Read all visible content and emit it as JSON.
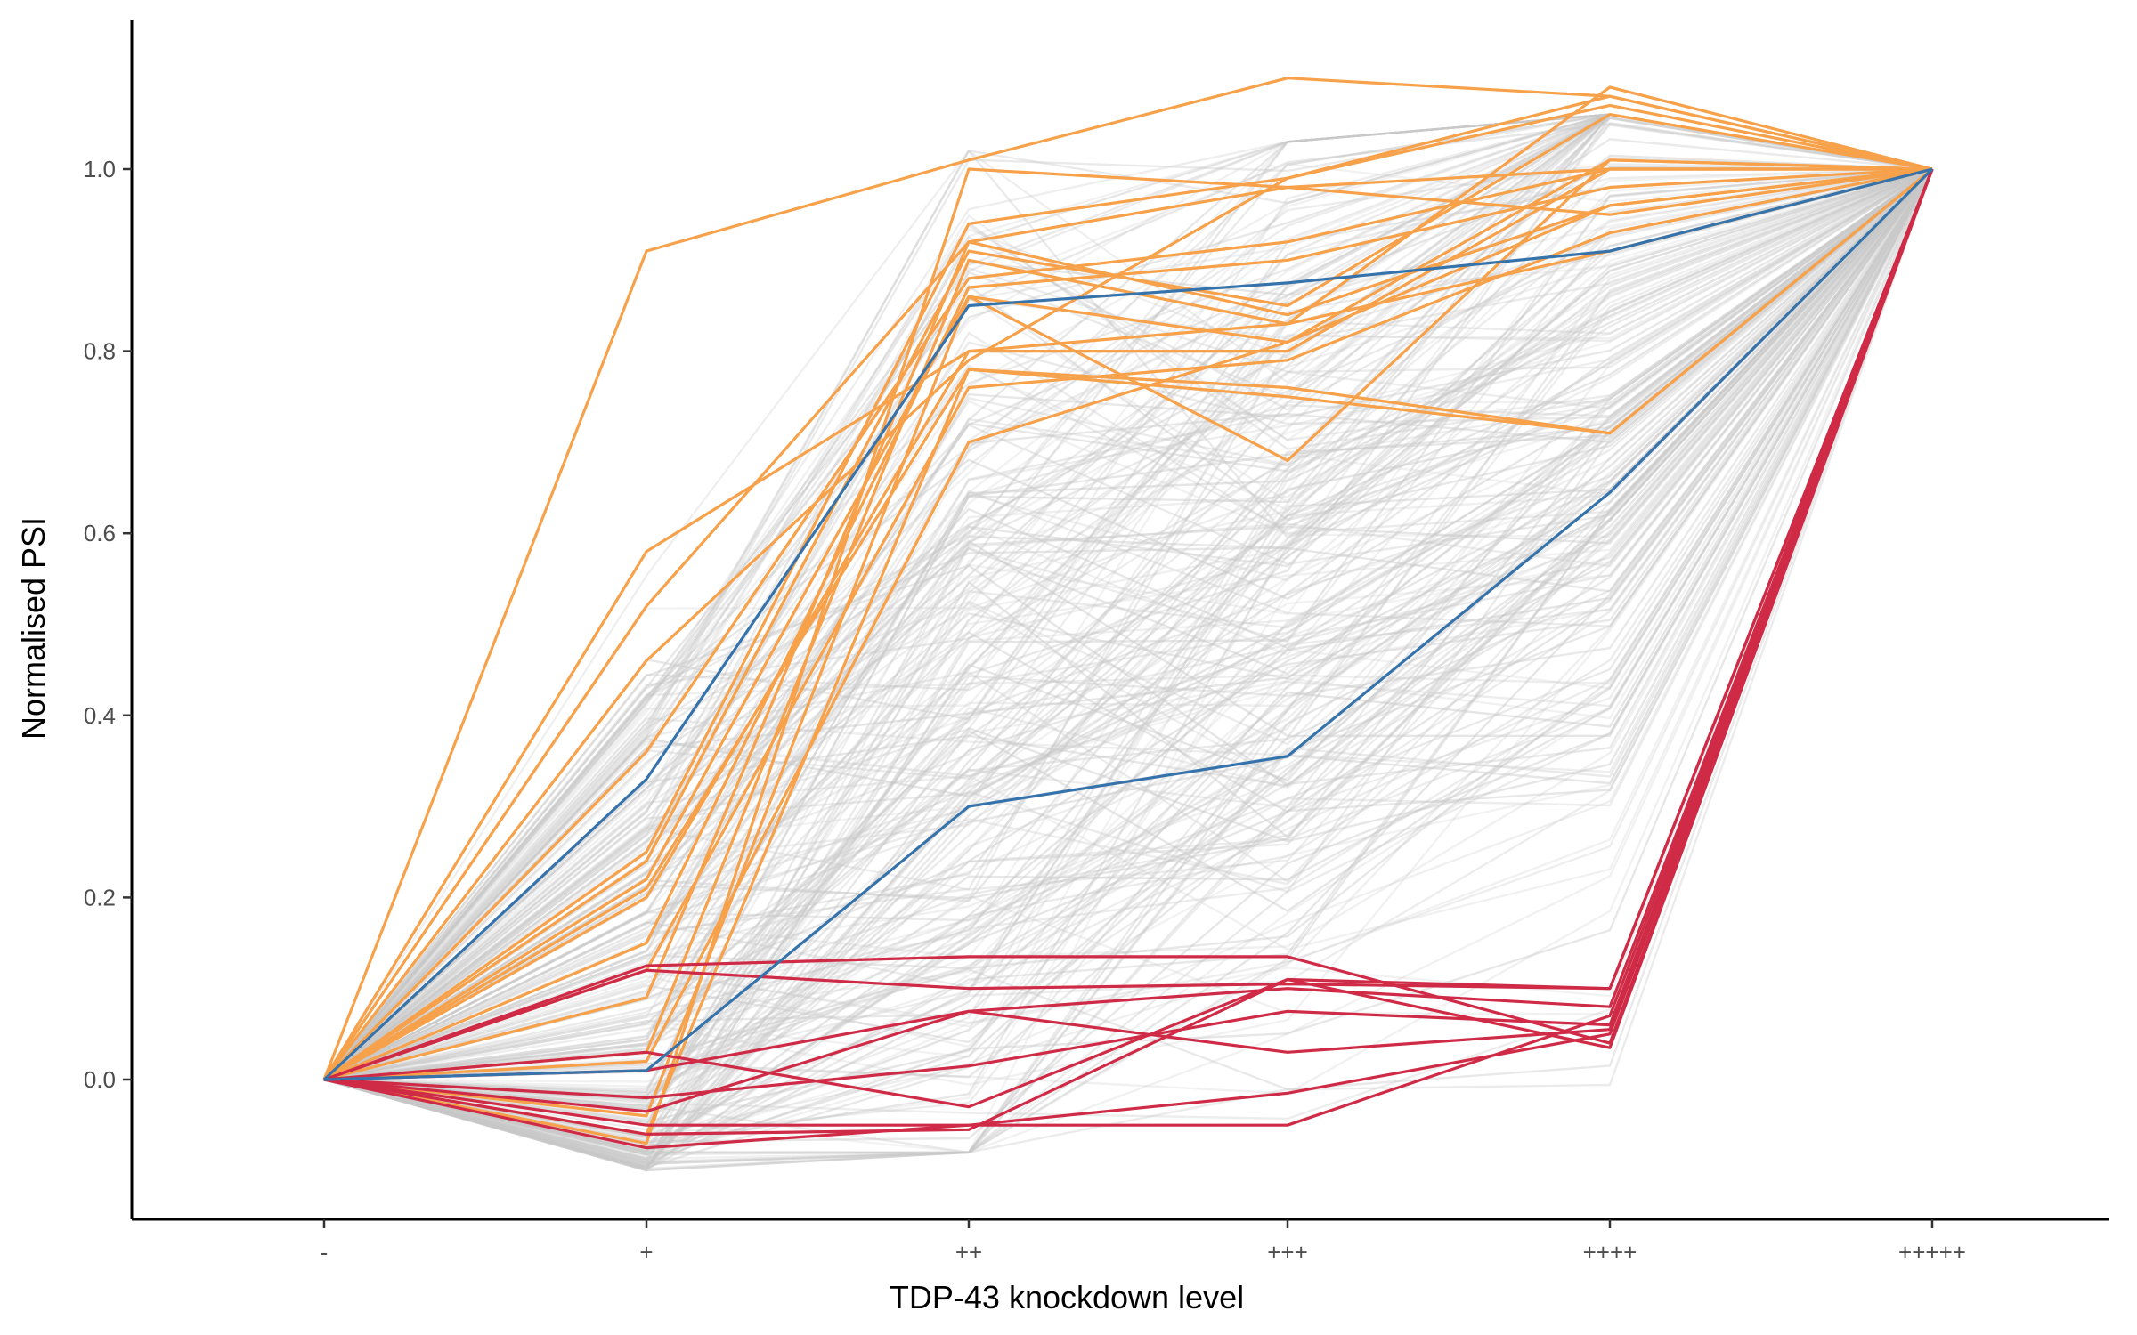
{
  "chart_data": {
    "type": "line",
    "title": "",
    "xlabel": "TDP-43 knockdown level",
    "ylabel": "Normalised PSI",
    "categories": [
      "-",
      "+",
      "++",
      "+++",
      "++++",
      "+++++"
    ],
    "yticks": [
      0.0,
      0.2,
      0.4,
      0.6,
      0.8,
      1.0
    ],
    "ytick_labels": [
      "0.0",
      "0.2",
      "0.4",
      "0.6",
      "0.8",
      "1.0"
    ],
    "ylim": [
      -0.15,
      1.16
    ],
    "grid": false,
    "legend": "none",
    "colors": {
      "background_lines": "#c8c8c8",
      "orange": "#f7a14a",
      "red": "#cf2a46",
      "blue": "#3773ab",
      "axis": "#000000"
    },
    "background_series": {
      "count": 260,
      "color": "background_lines",
      "note_values": "generated procedurally as a dense band of grey lines from 0 at '-' to 1 at '+++++'"
    },
    "series": [
      {
        "group": "orange",
        "values": [
          0,
          0.91,
          1.01,
          1.1,
          1.08,
          1.0
        ]
      },
      {
        "group": "orange",
        "values": [
          0,
          0.58,
          0.8,
          0.83,
          1.09,
          1.0
        ]
      },
      {
        "group": "orange",
        "values": [
          0,
          0.52,
          0.92,
          0.98,
          1.0,
          1.0
        ]
      },
      {
        "group": "orange",
        "values": [
          0,
          0.46,
          0.79,
          0.99,
          1.07,
          1.0
        ]
      },
      {
        "group": "orange",
        "values": [
          0,
          0.36,
          0.88,
          0.92,
          1.0,
          1.0
        ]
      },
      {
        "group": "orange",
        "values": [
          0,
          0.25,
          0.94,
          0.99,
          1.08,
          1.0
        ]
      },
      {
        "group": "orange",
        "values": [
          0,
          0.24,
          0.91,
          0.85,
          1.06,
          1.0
        ]
      },
      {
        "group": "orange",
        "values": [
          0,
          0.22,
          0.86,
          0.81,
          1.01,
          1.0
        ]
      },
      {
        "group": "orange",
        "values": [
          0,
          0.21,
          0.78,
          0.75,
          0.71,
          1.0
        ]
      },
      {
        "group": "orange",
        "values": [
          0,
          0.2,
          0.8,
          0.8,
          1.0,
          1.0
        ]
      },
      {
        "group": "orange",
        "values": [
          0,
          0.15,
          0.87,
          0.9,
          0.98,
          1.0
        ]
      },
      {
        "group": "orange",
        "values": [
          0,
          0.12,
          0.76,
          0.79,
          0.93,
          1.0
        ]
      },
      {
        "group": "orange",
        "values": [
          0,
          0.09,
          0.92,
          0.84,
          0.96,
          1.0
        ]
      },
      {
        "group": "orange",
        "values": [
          0,
          0.03,
          0.9,
          0.83,
          0.91,
          1.0
        ]
      },
      {
        "group": "orange",
        "values": [
          0,
          0.02,
          0.7,
          0.81,
          0.96,
          1.0
        ]
      },
      {
        "group": "orange",
        "values": [
          0,
          -0.04,
          0.86,
          0.68,
          1.01,
          1.0
        ]
      },
      {
        "group": "orange",
        "values": [
          0,
          -0.06,
          0.78,
          0.76,
          0.71,
          1.0
        ]
      },
      {
        "group": "orange",
        "values": [
          0,
          -0.07,
          1.0,
          0.98,
          0.95,
          1.0
        ]
      },
      {
        "group": "red",
        "values": [
          0,
          0.125,
          0.135,
          0.135,
          0.04,
          1.0
        ]
      },
      {
        "group": "red",
        "values": [
          0,
          0.12,
          0.1,
          0.105,
          0.1,
          1.0
        ]
      },
      {
        "group": "red",
        "values": [
          0,
          0.03,
          -0.03,
          0.11,
          0.1,
          1.0
        ]
      },
      {
        "group": "red",
        "values": [
          0,
          0.01,
          0.075,
          0.1,
          0.08,
          1.0
        ]
      },
      {
        "group": "red",
        "values": [
          0,
          -0.02,
          0.015,
          0.075,
          0.06,
          1.0
        ]
      },
      {
        "group": "red",
        "values": [
          0,
          -0.035,
          0.075,
          0.03,
          0.055,
          1.0
        ]
      },
      {
        "group": "red",
        "values": [
          0,
          -0.05,
          -0.05,
          -0.015,
          0.05,
          1.0
        ]
      },
      {
        "group": "red",
        "values": [
          0,
          -0.06,
          -0.055,
          0.11,
          0.035,
          1.0
        ]
      },
      {
        "group": "red",
        "values": [
          0,
          -0.075,
          -0.05,
          -0.05,
          0.07,
          1.0
        ]
      },
      {
        "group": "blue",
        "values": [
          0,
          0.33,
          0.85,
          0.875,
          0.91,
          1.0
        ]
      },
      {
        "group": "blue",
        "values": [
          0,
          0.01,
          0.3,
          0.355,
          0.645,
          1.0
        ]
      }
    ]
  }
}
